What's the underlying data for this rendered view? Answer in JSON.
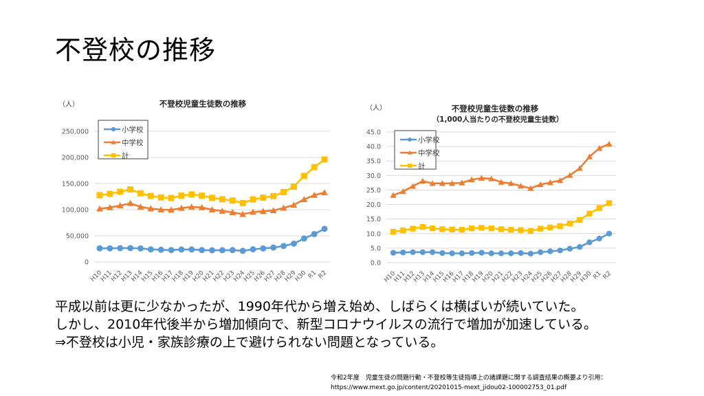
{
  "slide": {
    "title": "不登校の推移",
    "body_lines": [
      "平成以前は更に少なかったが、1990年代から増え始め、しばらくは横ばいが続いていた。",
      "しかし、2010年代後半から増加傾向で、新型コロナウイルスの流行で増加が加速している。",
      "⇒不登校は小児・家族診療の上で避けられない問題となっている。"
    ],
    "citation_lines": [
      "令和2年度　児童生徒の問題行動・不登校等生徒指導上の諸課題に関する調査結果の概要より引用：",
      "https://www.mext.go.jp/content/20201015-mext_jidou02-100002753_01.pdf"
    ]
  },
  "colors": {
    "elementary": "#5B9BD5",
    "junior_high": "#ED7D31",
    "total": "#FFC000",
    "grid": "#D9D9D9",
    "axis_text": "#595959",
    "legend_border": "#404040"
  },
  "chart_data": [
    {
      "type": "line",
      "title": "不登校児童生徒数の推移",
      "subtitle": "",
      "unit_label": "（人）",
      "xlabel": "",
      "ylabel": "（人）",
      "ylim": [
        0,
        250000
      ],
      "yticks": [
        0,
        50000,
        100000,
        150000,
        200000,
        250000
      ],
      "ytick_labels": [
        "0",
        "50,000",
        "100,000",
        "150,000",
        "200,000",
        "250,000"
      ],
      "grid": true,
      "legend_position": "top-left",
      "categories": [
        "H10",
        "H11",
        "H12",
        "H13",
        "H14",
        "H15",
        "H16",
        "H17",
        "H18",
        "H19",
        "H20",
        "H21",
        "H22",
        "H23",
        "H24",
        "H25",
        "H26",
        "H27",
        "H28",
        "H29",
        "H30",
        "R1",
        "R2"
      ],
      "series": [
        {
          "name": "小学校",
          "marker": "circle",
          "color_key": "elementary",
          "values": [
            26017,
            26047,
            26373,
            26511,
            25869,
            24077,
            23318,
            22709,
            23825,
            23927,
            22652,
            22327,
            22463,
            22622,
            21243,
            24175,
            25864,
            27583,
            30448,
            35032,
            44841,
            53350,
            63350
          ]
        },
        {
          "name": "中学校",
          "marker": "triangle",
          "color_key": "junior_high",
          "values": [
            101675,
            104180,
            107913,
            112211,
            105383,
            102149,
            100040,
            99578,
            103069,
            105328,
            104153,
            100105,
            97428,
            94836,
            91446,
            95442,
            97033,
            98408,
            103235,
            108999,
            119687,
            127922,
            132777
          ]
        },
        {
          "name": "計",
          "marker": "square",
          "color_key": "total",
          "values": [
            127692,
            130227,
            134286,
            138722,
            131252,
            126226,
            123358,
            122287,
            126894,
            129255,
            126805,
            122432,
            119891,
            117458,
            112689,
            119617,
            122897,
            125991,
            133683,
            144031,
            164528,
            181272,
            196127
          ]
        }
      ]
    },
    {
      "type": "line",
      "title": "不登校児童生徒数の推移",
      "subtitle": "（1,000人当たりの不登校児童生徒数）",
      "unit_label": "（人）",
      "xlabel": "",
      "ylabel": "（人）",
      "ylim": [
        0,
        45
      ],
      "yticks": [
        0,
        5,
        10,
        15,
        20,
        25,
        30,
        35,
        40,
        45
      ],
      "ytick_labels": [
        "0.0",
        "5.0",
        "10.0",
        "15.0",
        "20.0",
        "25.0",
        "30.0",
        "35.0",
        "40.0",
        "45.0"
      ],
      "grid": true,
      "legend_position": "top-left",
      "categories": [
        "H10",
        "H11",
        "H12",
        "H13",
        "H14",
        "H15",
        "H16",
        "H17",
        "H18",
        "H19",
        "H20",
        "H21",
        "H22",
        "H23",
        "H24",
        "H25",
        "H26",
        "H27",
        "H28",
        "H29",
        "H30",
        "R1",
        "R2"
      ],
      "series": [
        {
          "name": "小学校",
          "marker": "circle",
          "color_key": "elementary",
          "values": [
            3.4,
            3.5,
            3.6,
            3.6,
            3.6,
            3.3,
            3.2,
            3.2,
            3.3,
            3.4,
            3.2,
            3.2,
            3.2,
            3.3,
            3.1,
            3.6,
            3.9,
            4.2,
            4.8,
            5.4,
            7.0,
            8.3,
            10.0
          ]
        },
        {
          "name": "中学校",
          "marker": "triangle",
          "color_key": "junior_high",
          "values": [
            23.2,
            24.5,
            26.3,
            28.1,
            27.3,
            27.3,
            27.3,
            27.5,
            28.6,
            29.1,
            28.9,
            27.7,
            27.3,
            26.4,
            25.6,
            26.9,
            27.6,
            28.3,
            30.1,
            32.5,
            36.5,
            39.4,
            40.9
          ]
        },
        {
          "name": "計",
          "marker": "square",
          "color_key": "total",
          "values": [
            10.6,
            11.1,
            11.7,
            12.3,
            11.8,
            11.5,
            11.4,
            11.3,
            11.8,
            12.0,
            11.8,
            11.5,
            11.3,
            11.2,
            10.9,
            11.7,
            12.1,
            12.6,
            13.5,
            14.7,
            16.9,
            18.8,
            20.5
          ]
        }
      ]
    }
  ]
}
